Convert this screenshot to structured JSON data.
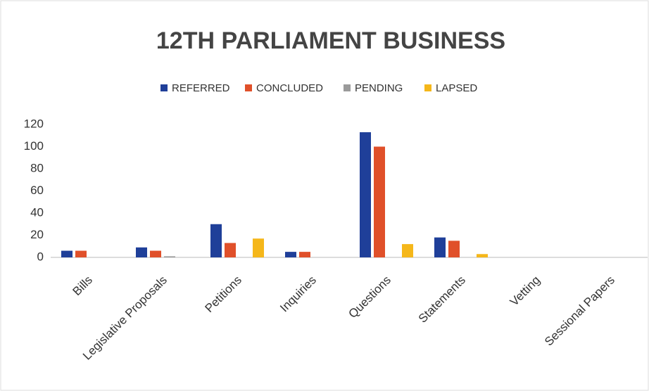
{
  "chart_data": {
    "type": "bar",
    "title": "12TH PARLIAMENT BUSINESS",
    "categories": [
      "Bills",
      "Legislative Proposals",
      "Petitions",
      "Inquiries",
      "Questions",
      "Statements",
      "Vetting",
      "Sessional Papers"
    ],
    "series": [
      {
        "name": "REFERRED",
        "color": "#1f3f99",
        "values": [
          6,
          9,
          30,
          5,
          113,
          18,
          0,
          0
        ]
      },
      {
        "name": "CONCLUDED",
        "color": "#e0502a",
        "values": [
          6,
          6,
          13,
          5,
          100,
          15,
          0,
          0
        ]
      },
      {
        "name": "PENDING",
        "color": "#9a9a9a",
        "values": [
          0,
          1,
          0,
          0,
          0,
          0,
          0,
          0
        ]
      },
      {
        "name": "LAPSED",
        "color": "#f5b71a",
        "values": [
          0,
          0,
          17,
          0,
          12,
          3,
          0,
          0
        ]
      }
    ],
    "ylim": [
      0,
      120
    ],
    "yticks": [
      0,
      20,
      40,
      60,
      80,
      100,
      120
    ],
    "grid": false,
    "legend": "top"
  }
}
